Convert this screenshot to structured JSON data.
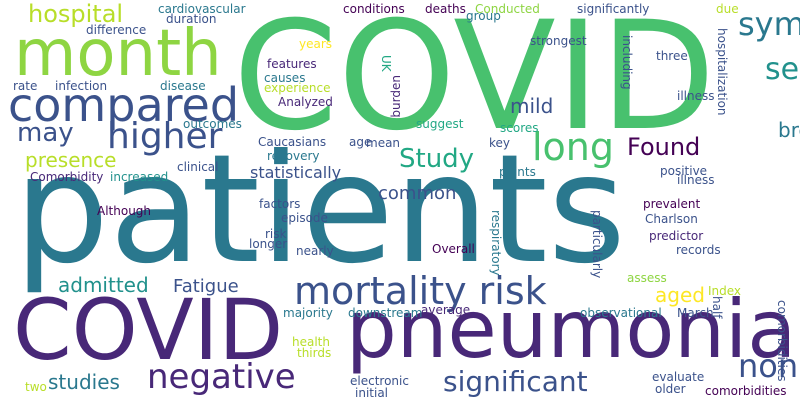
{
  "palette": {
    "green": "#48c16e",
    "light_green": "#8ed542",
    "yellow_green": "#b8de29",
    "teal": "#2a788e",
    "blue": "#3b528b",
    "purple": "#482878",
    "dark_purple": "#440154",
    "sea_green": "#22a884",
    "cyan": "#21918c",
    "yellow": "#fde725",
    "background": "#ffffff"
  },
  "words": {
    "patients": "patients",
    "covid_big": "COVID",
    "covid_small": "COVID",
    "pneumonia": "pneumonia",
    "month": "month",
    "compared": "compared",
    "higher": "higher",
    "hospital": "hospital",
    "may": "may",
    "presence": "presence",
    "long": "long",
    "found": "Found",
    "study": "Study",
    "symptoms": "symptoms",
    "severe": "severe",
    "breathlessness": "breathlessness",
    "mild": "mild",
    "mortality_risk": "mortality risk",
    "admitted": "admitted",
    "fatigue": "Fatigue",
    "negative": "negative",
    "significant": "significant",
    "studies": "studies",
    "non": "non",
    "common": "common",
    "aged": "aged",
    "statistically": "statistically",
    "cardiovascular": "cardiovascular",
    "conditions": "conditions",
    "deaths": "deaths",
    "conducted": "Conducted",
    "significantly": "significantly",
    "due": "due",
    "group": "group",
    "duration": "duration",
    "difference": "difference",
    "strongest": "strongest",
    "including": "including",
    "three": "three",
    "hospitalization": "hospitalization",
    "years": "years",
    "features": "features",
    "causes": "causes",
    "experience": "experience",
    "rate": "rate",
    "infection": "infection",
    "disease": "disease",
    "uk": "UK",
    "burden": "burden",
    "analyzed": "Analyzed",
    "outcomes": "outcomes",
    "suggest": "suggest",
    "scores": "scores",
    "illness": "illness",
    "caucasians": "Caucasians",
    "recovery": "recovery",
    "age": "age",
    "mean": "mean",
    "key": "key",
    "clinical": "clinical",
    "points": "points",
    "positive": "positive",
    "comorbidity": "Comorbidity",
    "increased": "increased",
    "although": "Although",
    "factors": "factors",
    "episode": "episode",
    "prevalent": "prevalent",
    "charlson": "Charlson",
    "risk": "risk",
    "longer": "longer",
    "predictor": "predictor",
    "nearly": "nearly",
    "records": "records",
    "overall": "Overall",
    "particularly": "particularly",
    "respiratory": "respiratory",
    "assess": "assess",
    "index": "Index",
    "half": "half",
    "majority": "majority",
    "downstream": "downstream",
    "average": "average",
    "observational": "observational",
    "march": "March",
    "health": "health",
    "thirds": "thirds",
    "two": "two",
    "electronic": "electronic",
    "initial": "initial",
    "evaluate": "evaluate",
    "older": "older",
    "comorbidities": "comorbidities"
  }
}
